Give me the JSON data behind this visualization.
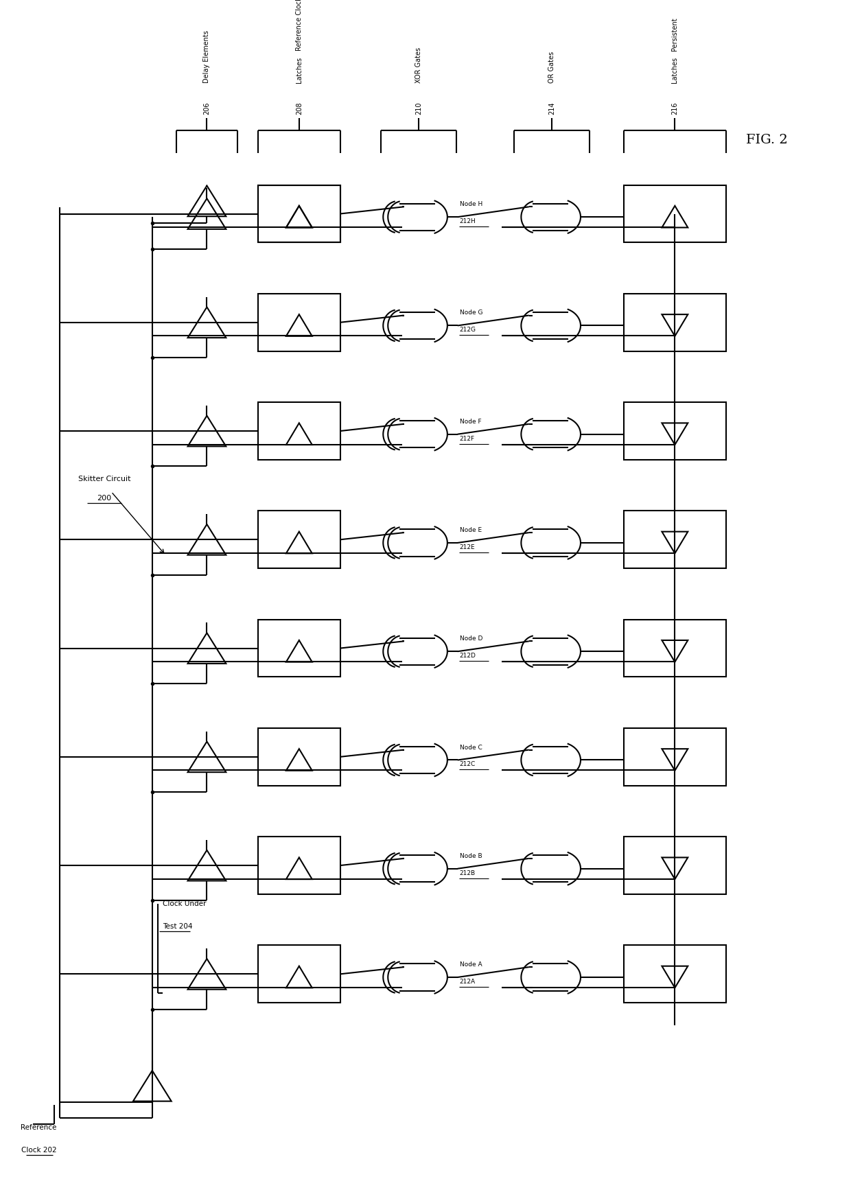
{
  "title": "FIG. 2",
  "background_color": "#ffffff",
  "fig_width": 12.4,
  "fig_height": 17.34,
  "nodes": [
    "A",
    "B",
    "C",
    "D",
    "E",
    "F",
    "G",
    "H"
  ],
  "node_numbers": [
    "212A",
    "212B",
    "212C",
    "212D",
    "212E",
    "212F",
    "212G",
    "212H"
  ],
  "skitter_label": "Skitter Circuit",
  "skitter_num": "200",
  "ref_clock_line1": "Reference",
  "ref_clock_line2": "Clock",
  "ref_clock_num": "202",
  "cut_line1": "Clock Under",
  "cut_line2": "Test",
  "cut_num": "204",
  "delay_label": "Delay Elements",
  "delay_num": "206",
  "ref_latch_label1": "Reference Clock",
  "ref_latch_label2": "Latches",
  "ref_latch_num": "208",
  "xor_label": "XOR Gates",
  "xor_num": "210",
  "or_label": "OR Gates",
  "or_num": "214",
  "persist_label1": "Persistent",
  "persist_label2": "Latches",
  "persist_num": "216"
}
